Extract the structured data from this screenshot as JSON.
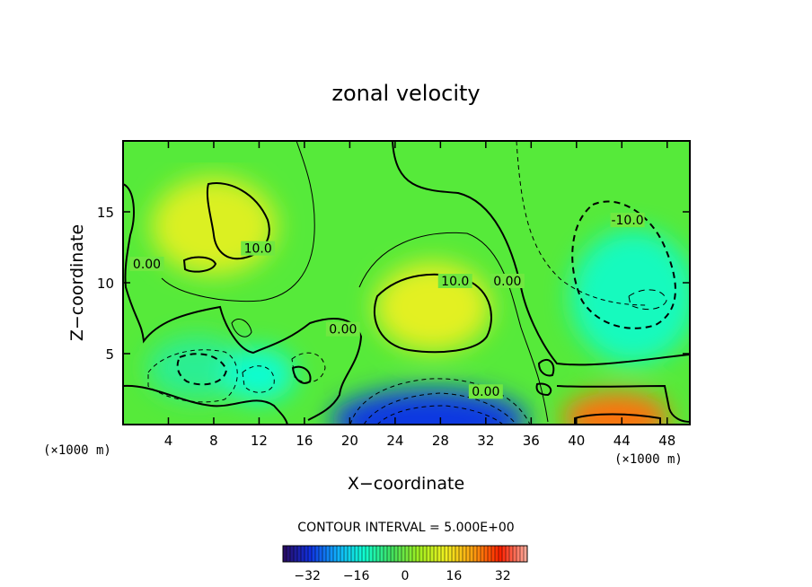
{
  "chart_data": {
    "type": "heatmap",
    "title": "zonal velocity",
    "xlabel": "X−coordinate",
    "ylabel": "Z−coordinate",
    "x_units": "(×1000 m)",
    "y_units": "(×1000 m)",
    "xlim": [
      0,
      50
    ],
    "ylim": [
      0,
      20
    ],
    "x_ticks": [
      "4",
      "8",
      "12",
      "16",
      "20",
      "24",
      "28",
      "32",
      "36",
      "40",
      "44",
      "48"
    ],
    "x_tick_values": [
      4,
      8,
      12,
      16,
      20,
      24,
      28,
      32,
      36,
      40,
      44,
      48
    ],
    "y_ticks": [
      "5",
      "10",
      "15"
    ],
    "y_tick_values": [
      5,
      10,
      15
    ],
    "contour_interval_text": "CONTOUR INTERVAL = 5.000E+00",
    "contour_interval": 5,
    "contour_labels": [
      {
        "text": "10.0",
        "x": 11.9,
        "y": 12.3
      },
      {
        "text": "0.00",
        "x": 2.1,
        "y": 11.2
      },
      {
        "text": "10.0",
        "x": 29.3,
        "y": 10.0
      },
      {
        "text": "0.00",
        "x": 33.9,
        "y": 10.0
      },
      {
        "text": "0.00",
        "x": 19.4,
        "y": 6.6
      },
      {
        "text": "0.00",
        "x": 32.0,
        "y": 2.2
      },
      {
        "text": "-10.0",
        "x": 44.5,
        "y": 14.3
      }
    ],
    "features": [
      {
        "sign": "positive",
        "peak": 13,
        "x": 8.0,
        "y": 14.0
      },
      {
        "sign": "positive",
        "peak": 14,
        "x": 27.3,
        "y": 8.3
      },
      {
        "sign": "positive",
        "peak": 30,
        "x": 43.5,
        "y": 0.5
      },
      {
        "sign": "negative",
        "peak": -14,
        "x": 45.0,
        "y": 9.0
      },
      {
        "sign": "negative",
        "peak": -10,
        "x": 6.5,
        "y": 4.0
      },
      {
        "sign": "negative",
        "peak": -16,
        "x": 12.0,
        "y": 3.5
      },
      {
        "sign": "negative",
        "peak": -36,
        "x": 27.0,
        "y": 0.3
      }
    ],
    "colorbar": {
      "range": [
        -40,
        40
      ],
      "tick_labels": [
        "−32",
        "−16",
        "0",
        "16",
        "32"
      ],
      "tick_values": [
        -32,
        -16,
        0,
        16,
        32
      ],
      "colors": [
        "#2a0a60",
        "#1030e0",
        "#10b0ff",
        "#10ffd0",
        "#40e060",
        "#a0f020",
        "#f0f020",
        "#ffa010",
        "#ff2000",
        "#ffb0a0"
      ]
    }
  }
}
